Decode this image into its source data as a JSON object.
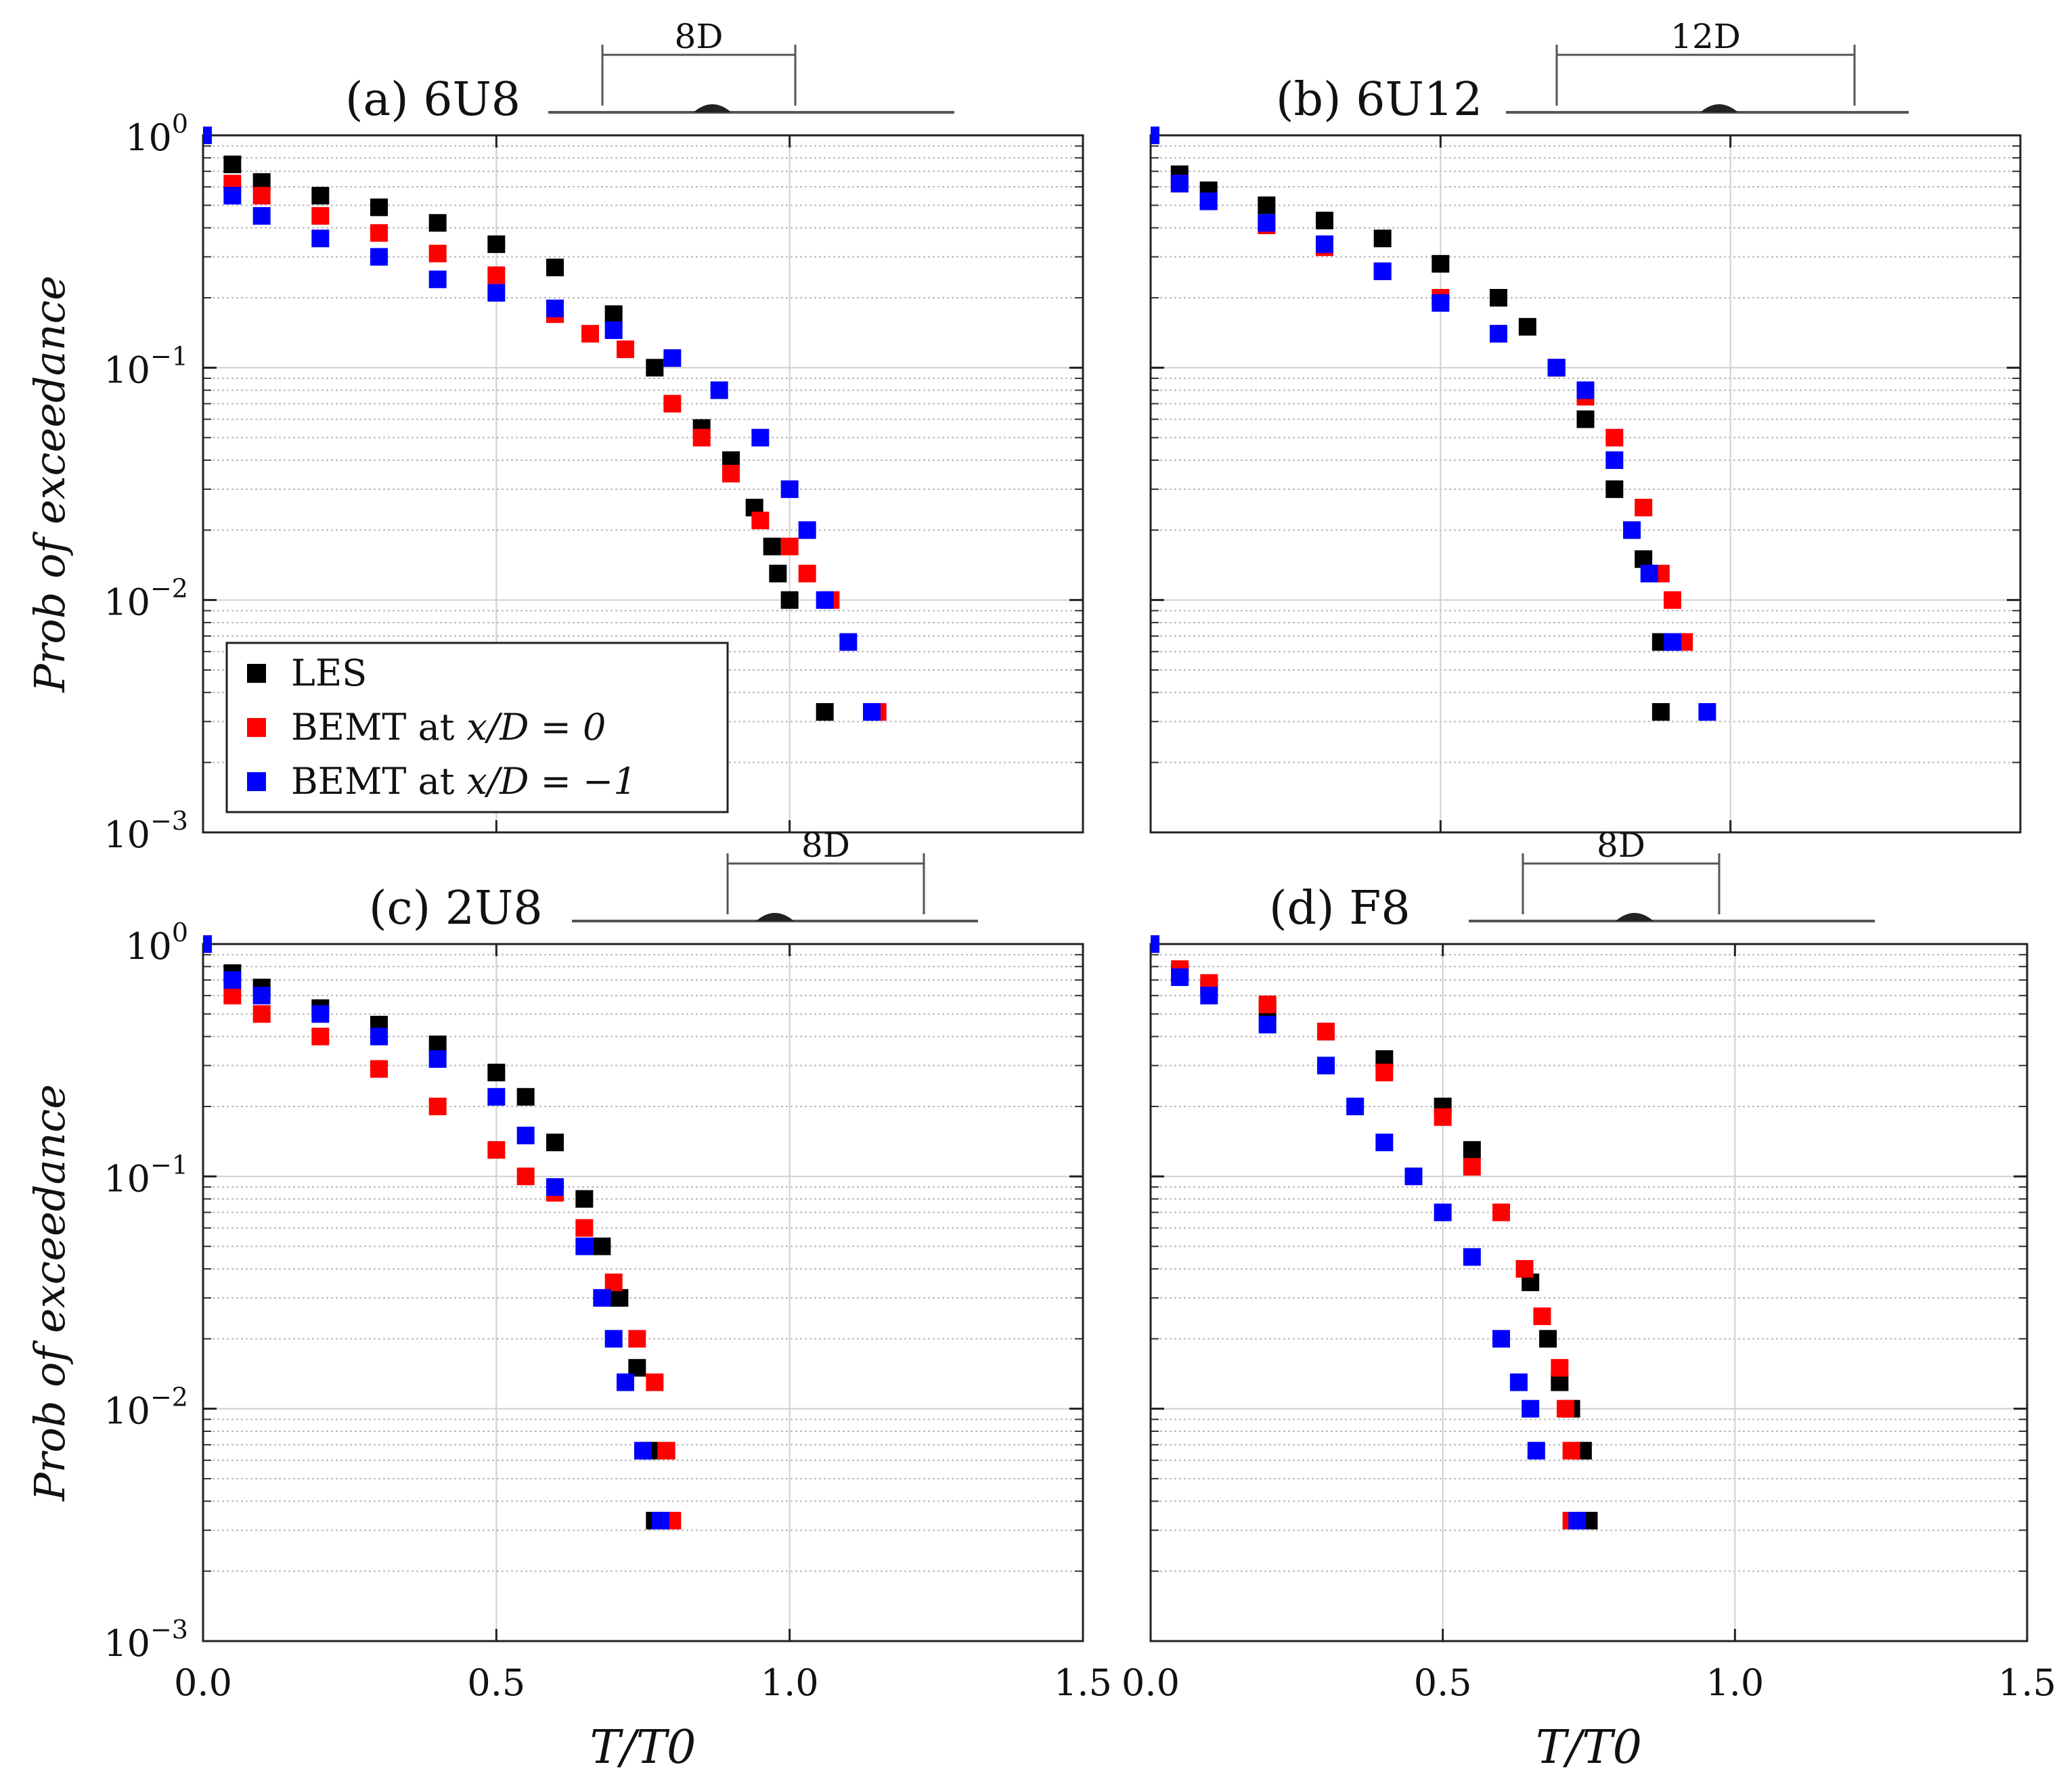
{
  "colors": {
    "LES": "#000000",
    "BEMT_x0": "#ff0000",
    "BEMT_xm1": "#0000ff"
  },
  "chart_data": [
    {
      "type": "scatter",
      "title": "(a) 6U8",
      "spacing_label": "8D",
      "xlabel": "",
      "ylabel": "Prob of exceedance",
      "xlim": [
        0.0,
        1.5
      ],
      "ylim": [
        0.001,
        1.0
      ],
      "yscale": "log",
      "legend": {
        "placement": "bottom-left",
        "entries": [
          "LES",
          "BEMT at x/D = 0",
          "BEMT at x/D = −1"
        ]
      },
      "series": [
        {
          "name": "LES",
          "x": [
            0.0,
            0.05,
            0.1,
            0.2,
            0.3,
            0.4,
            0.5,
            0.6,
            0.7,
            0.77,
            0.85,
            0.9,
            0.94,
            0.97,
            0.98,
            1.0,
            1.06
          ],
          "y": [
            1.0,
            0.75,
            0.63,
            0.55,
            0.49,
            0.42,
            0.34,
            0.27,
            0.17,
            0.1,
            0.055,
            0.04,
            0.025,
            0.017,
            0.013,
            0.01,
            0.0033
          ]
        },
        {
          "name": "BEMT at x/D = 0",
          "x": [
            0.0,
            0.05,
            0.1,
            0.2,
            0.3,
            0.4,
            0.5,
            0.6,
            0.66,
            0.72,
            0.8,
            0.85,
            0.9,
            0.95,
            1.0,
            1.03,
            1.07,
            1.15
          ],
          "y": [
            1.0,
            0.62,
            0.55,
            0.45,
            0.38,
            0.31,
            0.25,
            0.17,
            0.14,
            0.12,
            0.07,
            0.05,
            0.035,
            0.022,
            0.017,
            0.013,
            0.01,
            0.0033
          ]
        },
        {
          "name": "BEMT at x/D = −1",
          "x": [
            0.0,
            0.05,
            0.1,
            0.2,
            0.3,
            0.4,
            0.5,
            0.6,
            0.7,
            0.8,
            0.88,
            0.95,
            1.0,
            1.03,
            1.06,
            1.1,
            1.14
          ],
          "y": [
            1.0,
            0.55,
            0.45,
            0.36,
            0.3,
            0.24,
            0.21,
            0.18,
            0.145,
            0.11,
            0.08,
            0.05,
            0.03,
            0.02,
            0.01,
            0.0066,
            0.0033
          ]
        }
      ]
    },
    {
      "type": "scatter",
      "title": "(b) 6U12",
      "spacing_label": "12D",
      "xlabel": "",
      "ylabel": "",
      "xlim": [
        0.0,
        1.5
      ],
      "ylim": [
        0.001,
        1.0
      ],
      "yscale": "log",
      "series": [
        {
          "name": "LES",
          "x": [
            0.0,
            0.05,
            0.1,
            0.2,
            0.3,
            0.4,
            0.5,
            0.6,
            0.65,
            0.7,
            0.75,
            0.8,
            0.85,
            0.88,
            0.88
          ],
          "y": [
            1.0,
            0.68,
            0.58,
            0.5,
            0.43,
            0.36,
            0.28,
            0.2,
            0.15,
            0.1,
            0.06,
            0.03,
            0.015,
            0.0066,
            0.0033
          ]
        },
        {
          "name": "BEMT at x/D = 0",
          "x": [
            0.0,
            0.05,
            0.1,
            0.2,
            0.3,
            0.4,
            0.5,
            0.6,
            0.7,
            0.75,
            0.8,
            0.85,
            0.88,
            0.9,
            0.92
          ],
          "y": [
            1.0,
            0.62,
            0.52,
            0.41,
            0.33,
            0.26,
            0.2,
            0.14,
            0.1,
            0.075,
            0.05,
            0.025,
            0.013,
            0.01,
            0.0066
          ]
        },
        {
          "name": "BEMT at x/D = −1",
          "x": [
            0.0,
            0.05,
            0.1,
            0.2,
            0.3,
            0.4,
            0.5,
            0.6,
            0.7,
            0.75,
            0.8,
            0.83,
            0.86,
            0.9,
            0.96
          ],
          "y": [
            1.0,
            0.62,
            0.52,
            0.42,
            0.34,
            0.26,
            0.19,
            0.14,
            0.1,
            0.08,
            0.04,
            0.02,
            0.013,
            0.0066,
            0.0033
          ]
        }
      ]
    },
    {
      "type": "scatter",
      "title": "(c) 2U8",
      "spacing_label": "8D",
      "xlabel": "T/T0",
      "ylabel": "Prob of exceedance",
      "xlim": [
        0.0,
        1.5
      ],
      "ylim": [
        0.001,
        1.0
      ],
      "yscale": "log",
      "series": [
        {
          "name": "LES",
          "x": [
            0.0,
            0.05,
            0.1,
            0.2,
            0.3,
            0.4,
            0.5,
            0.55,
            0.6,
            0.65,
            0.68,
            0.71,
            0.74,
            0.76,
            0.77
          ],
          "y": [
            1.0,
            0.75,
            0.65,
            0.53,
            0.45,
            0.37,
            0.28,
            0.22,
            0.14,
            0.08,
            0.05,
            0.03,
            0.015,
            0.0066,
            0.0033
          ]
        },
        {
          "name": "BEMT at x/D = 0",
          "x": [
            0.0,
            0.05,
            0.1,
            0.2,
            0.3,
            0.4,
            0.5,
            0.55,
            0.6,
            0.65,
            0.7,
            0.74,
            0.77,
            0.79,
            0.8
          ],
          "y": [
            1.0,
            0.6,
            0.5,
            0.4,
            0.29,
            0.2,
            0.13,
            0.1,
            0.085,
            0.06,
            0.035,
            0.02,
            0.013,
            0.0066,
            0.0033
          ]
        },
        {
          "name": "BEMT at x/D = −1",
          "x": [
            0.0,
            0.05,
            0.1,
            0.2,
            0.3,
            0.4,
            0.5,
            0.55,
            0.6,
            0.65,
            0.68,
            0.7,
            0.72,
            0.75,
            0.78
          ],
          "y": [
            1.0,
            0.7,
            0.6,
            0.5,
            0.4,
            0.32,
            0.22,
            0.15,
            0.09,
            0.05,
            0.03,
            0.02,
            0.013,
            0.0066,
            0.0033
          ]
        }
      ]
    },
    {
      "type": "scatter",
      "title": "(d) F8",
      "spacing_label": "8D",
      "xlabel": "T/T0",
      "ylabel": "",
      "xlim": [
        0.0,
        1.5
      ],
      "ylim": [
        0.001,
        1.0
      ],
      "yscale": "log",
      "series": [
        {
          "name": "LES",
          "x": [
            0.0,
            0.05,
            0.1,
            0.2,
            0.3,
            0.4,
            0.5,
            0.55,
            0.6,
            0.65,
            0.68,
            0.7,
            0.72,
            0.74,
            0.75
          ],
          "y": [
            1.0,
            0.75,
            0.65,
            0.52,
            0.42,
            0.32,
            0.2,
            0.13,
            0.07,
            0.035,
            0.02,
            0.013,
            0.01,
            0.0066,
            0.0033
          ]
        },
        {
          "name": "BEMT at x/D = 0",
          "x": [
            0.0,
            0.05,
            0.1,
            0.2,
            0.3,
            0.4,
            0.5,
            0.55,
            0.6,
            0.64,
            0.67,
            0.7,
            0.71,
            0.72,
            0.72
          ],
          "y": [
            1.0,
            0.78,
            0.68,
            0.55,
            0.42,
            0.28,
            0.18,
            0.11,
            0.07,
            0.04,
            0.025,
            0.015,
            0.01,
            0.0066,
            0.0033
          ]
        },
        {
          "name": "BEMT at x/D = −1",
          "x": [
            0.0,
            0.05,
            0.1,
            0.2,
            0.3,
            0.35,
            0.4,
            0.45,
            0.5,
            0.55,
            0.6,
            0.63,
            0.65,
            0.66,
            0.73
          ],
          "y": [
            1.0,
            0.72,
            0.6,
            0.45,
            0.3,
            0.2,
            0.14,
            0.1,
            0.07,
            0.045,
            0.02,
            0.013,
            0.01,
            0.0066,
            0.0033
          ]
        }
      ]
    }
  ],
  "legend_parts": {
    "les": "LES",
    "bemt": "BEMT at",
    "eq0": "x/D = 0",
    "eqm1": "x/D = −1"
  },
  "axis_text": {
    "xticks": [
      "0.0",
      "0.5",
      "1.0",
      "1.5"
    ],
    "y_base": "10",
    "y_exps": [
      "0",
      "−1",
      "−2",
      "−3"
    ]
  }
}
